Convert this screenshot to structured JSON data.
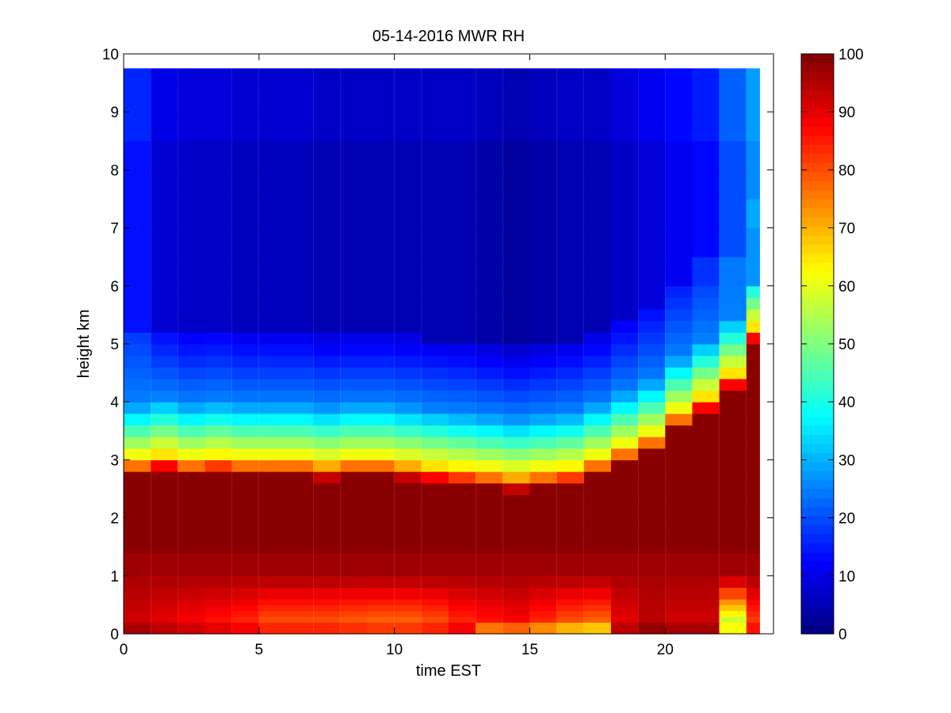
{
  "chart_data": {
    "type": "heatmap",
    "title": "05-14-2016 MWR RH",
    "xlabel": "time EST",
    "ylabel": "height km",
    "xlim": [
      0,
      24
    ],
    "ylim": [
      0,
      10
    ],
    "xticks": [
      0,
      5,
      10,
      15,
      20
    ],
    "yticks": [
      0,
      1,
      2,
      3,
      4,
      5,
      6,
      7,
      8,
      9,
      10
    ],
    "colorbar": {
      "colormap": "jet",
      "range": [
        0,
        100
      ],
      "ticks": [
        0,
        10,
        20,
        30,
        40,
        50,
        60,
        70,
        80,
        90,
        100
      ]
    },
    "grid": false,
    "time_hours": [
      0,
      1,
      2,
      3,
      4,
      5,
      6,
      7,
      8,
      9,
      10,
      11,
      12,
      13,
      14,
      15,
      16,
      17,
      18,
      19,
      20,
      21,
      22,
      23
    ],
    "height_km": [
      0.0,
      0.1,
      0.2,
      0.3,
      0.4,
      0.5,
      0.6,
      0.8,
      1.0,
      1.2,
      1.4,
      1.6,
      1.8,
      2.0,
      2.2,
      2.4,
      2.6,
      2.8,
      3.0,
      3.2,
      3.4,
      3.6,
      3.8,
      4.0,
      4.2,
      4.4,
      4.6,
      4.8,
      5.0,
      5.2,
      5.4,
      5.6,
      5.8,
      6.0,
      6.5,
      7.0,
      7.5,
      8.0,
      8.5,
      9.0,
      9.5,
      9.75
    ],
    "profile_params": {
      "columns": [
        {
          "hour": 0,
          "base_top": 3.0,
          "upper_rh": 14,
          "low_rh": 92
        },
        {
          "hour": 1,
          "base_top": 3.1,
          "upper_rh": 8,
          "low_rh": 90
        },
        {
          "hour": 2,
          "base_top": 3.0,
          "upper_rh": 7,
          "low_rh": 88
        },
        {
          "hour": 3,
          "base_top": 3.05,
          "upper_rh": 7,
          "low_rh": 86
        },
        {
          "hour": 4,
          "base_top": 3.0,
          "upper_rh": 6,
          "low_rh": 84
        },
        {
          "hour": 5,
          "base_top": 3.0,
          "upper_rh": 6,
          "low_rh": 80
        },
        {
          "hour": 6,
          "base_top": 3.0,
          "upper_rh": 6,
          "low_rh": 80
        },
        {
          "hour": 7,
          "base_top": 2.95,
          "upper_rh": 5,
          "low_rh": 80
        },
        {
          "hour": 8,
          "base_top": 3.0,
          "upper_rh": 5,
          "low_rh": 79
        },
        {
          "hour": 9,
          "base_top": 3.0,
          "upper_rh": 5,
          "low_rh": 78
        },
        {
          "hour": 10,
          "base_top": 2.95,
          "upper_rh": 5,
          "low_rh": 78
        },
        {
          "hour": 11,
          "base_top": 2.9,
          "upper_rh": 5,
          "low_rh": 80
        },
        {
          "hour": 12,
          "base_top": 2.85,
          "upper_rh": 5,
          "low_rh": 84
        },
        {
          "hour": 13,
          "base_top": 2.8,
          "upper_rh": 4,
          "low_rh": 86
        },
        {
          "hour": 14,
          "base_top": 2.75,
          "upper_rh": 3,
          "low_rh": 88
        },
        {
          "hour": 15,
          "base_top": 2.8,
          "upper_rh": 4,
          "low_rh": 84
        },
        {
          "hour": 16,
          "base_top": 2.85,
          "upper_rh": 5,
          "low_rh": 80
        },
        {
          "hour": 17,
          "base_top": 3.0,
          "upper_rh": 5,
          "low_rh": 78
        },
        {
          "hour": 18,
          "base_top": 3.2,
          "upper_rh": 7,
          "low_rh": 90
        },
        {
          "hour": 19,
          "base_top": 3.4,
          "upper_rh": 9,
          "low_rh": 94
        },
        {
          "hour": 20,
          "base_top": 3.8,
          "upper_rh": 11,
          "low_rh": 92
        },
        {
          "hour": 21,
          "base_top": 4.1,
          "upper_rh": 13,
          "low_rh": 92
        },
        {
          "hour": 22,
          "base_top": 4.5,
          "upper_rh": 20,
          "low_rh": 58
        },
        {
          "hour": 23,
          "base_top": 5.3,
          "upper_rh": 26,
          "low_rh": 82
        }
      ]
    }
  }
}
